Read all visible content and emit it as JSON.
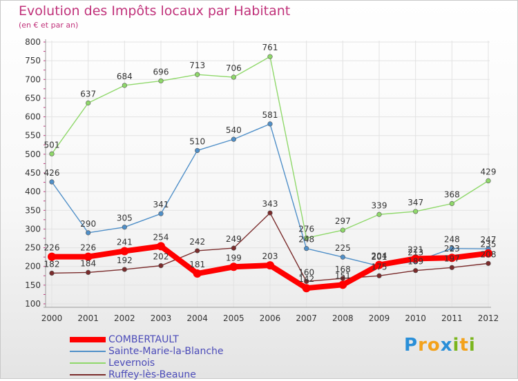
{
  "header": {
    "title": "Evolution des Impôts locaux par Habitant",
    "subtitle": "(en € et par an)"
  },
  "brand": {
    "letters": [
      "P",
      "r",
      "o",
      "x",
      "i",
      "t",
      "i"
    ],
    "colors": [
      "#2a8fd8",
      "#f3a21b",
      "#f3a21b",
      "#2a8fd8",
      "#7ab51d",
      "#f3a21b",
      "#7ab51d"
    ]
  },
  "chart_data": {
    "type": "line",
    "x": [
      "2000",
      "2001",
      "2002",
      "2003",
      "2004",
      "2005",
      "2006",
      "2007",
      "2008",
      "2009",
      "2010",
      "2011",
      "2012"
    ],
    "ylim": [
      100,
      800
    ],
    "yticks": [
      100,
      150,
      200,
      250,
      300,
      350,
      400,
      450,
      500,
      550,
      600,
      650,
      700,
      750,
      800
    ],
    "grid": true,
    "legend_position": "bottom-left",
    "series": [
      {
        "name": "COMBERTAULT",
        "color": "#ff0000",
        "values": [
          226,
          226,
          241,
          254,
          181,
          199,
          203,
          142,
          151,
          204,
          221,
          223,
          235
        ],
        "labels": [
          "226",
          "226",
          "241",
          "254",
          "181",
          "199",
          "203",
          "142",
          "151",
          "204",
          "221",
          "223",
          "235"
        ]
      },
      {
        "name": "Sainte-Marie-la-Blanche",
        "color": "#4f8fc8",
        "values": [
          426,
          290,
          305,
          341,
          510,
          540,
          581,
          248,
          225,
          201,
          213,
          248,
          247
        ],
        "labels": [
          "426",
          "290",
          "305",
          "341",
          "510",
          "540",
          "581",
          "248",
          "225",
          "201",
          "213",
          "248",
          "247"
        ]
      },
      {
        "name": "Levernois",
        "color": "#8fd86a",
        "values": [
          501,
          637,
          684,
          696,
          713,
          706,
          761,
          276,
          297,
          339,
          347,
          368,
          429
        ],
        "labels": [
          "501",
          "637",
          "684",
          "696",
          "713",
          "706",
          "761",
          "276",
          "297",
          "339",
          "347",
          "368",
          "429"
        ]
      },
      {
        "name": "Ruffey-lès-Beaune",
        "color": "#7a2b2b",
        "values": [
          182,
          184,
          192,
          202,
          242,
          249,
          343,
          160,
          168,
          175,
          189,
          197,
          208
        ],
        "labels": [
          "182",
          "184",
          "192",
          "202",
          "242",
          "249",
          "343",
          "160",
          "168",
          "175",
          "189",
          "197",
          "208"
        ]
      }
    ]
  }
}
